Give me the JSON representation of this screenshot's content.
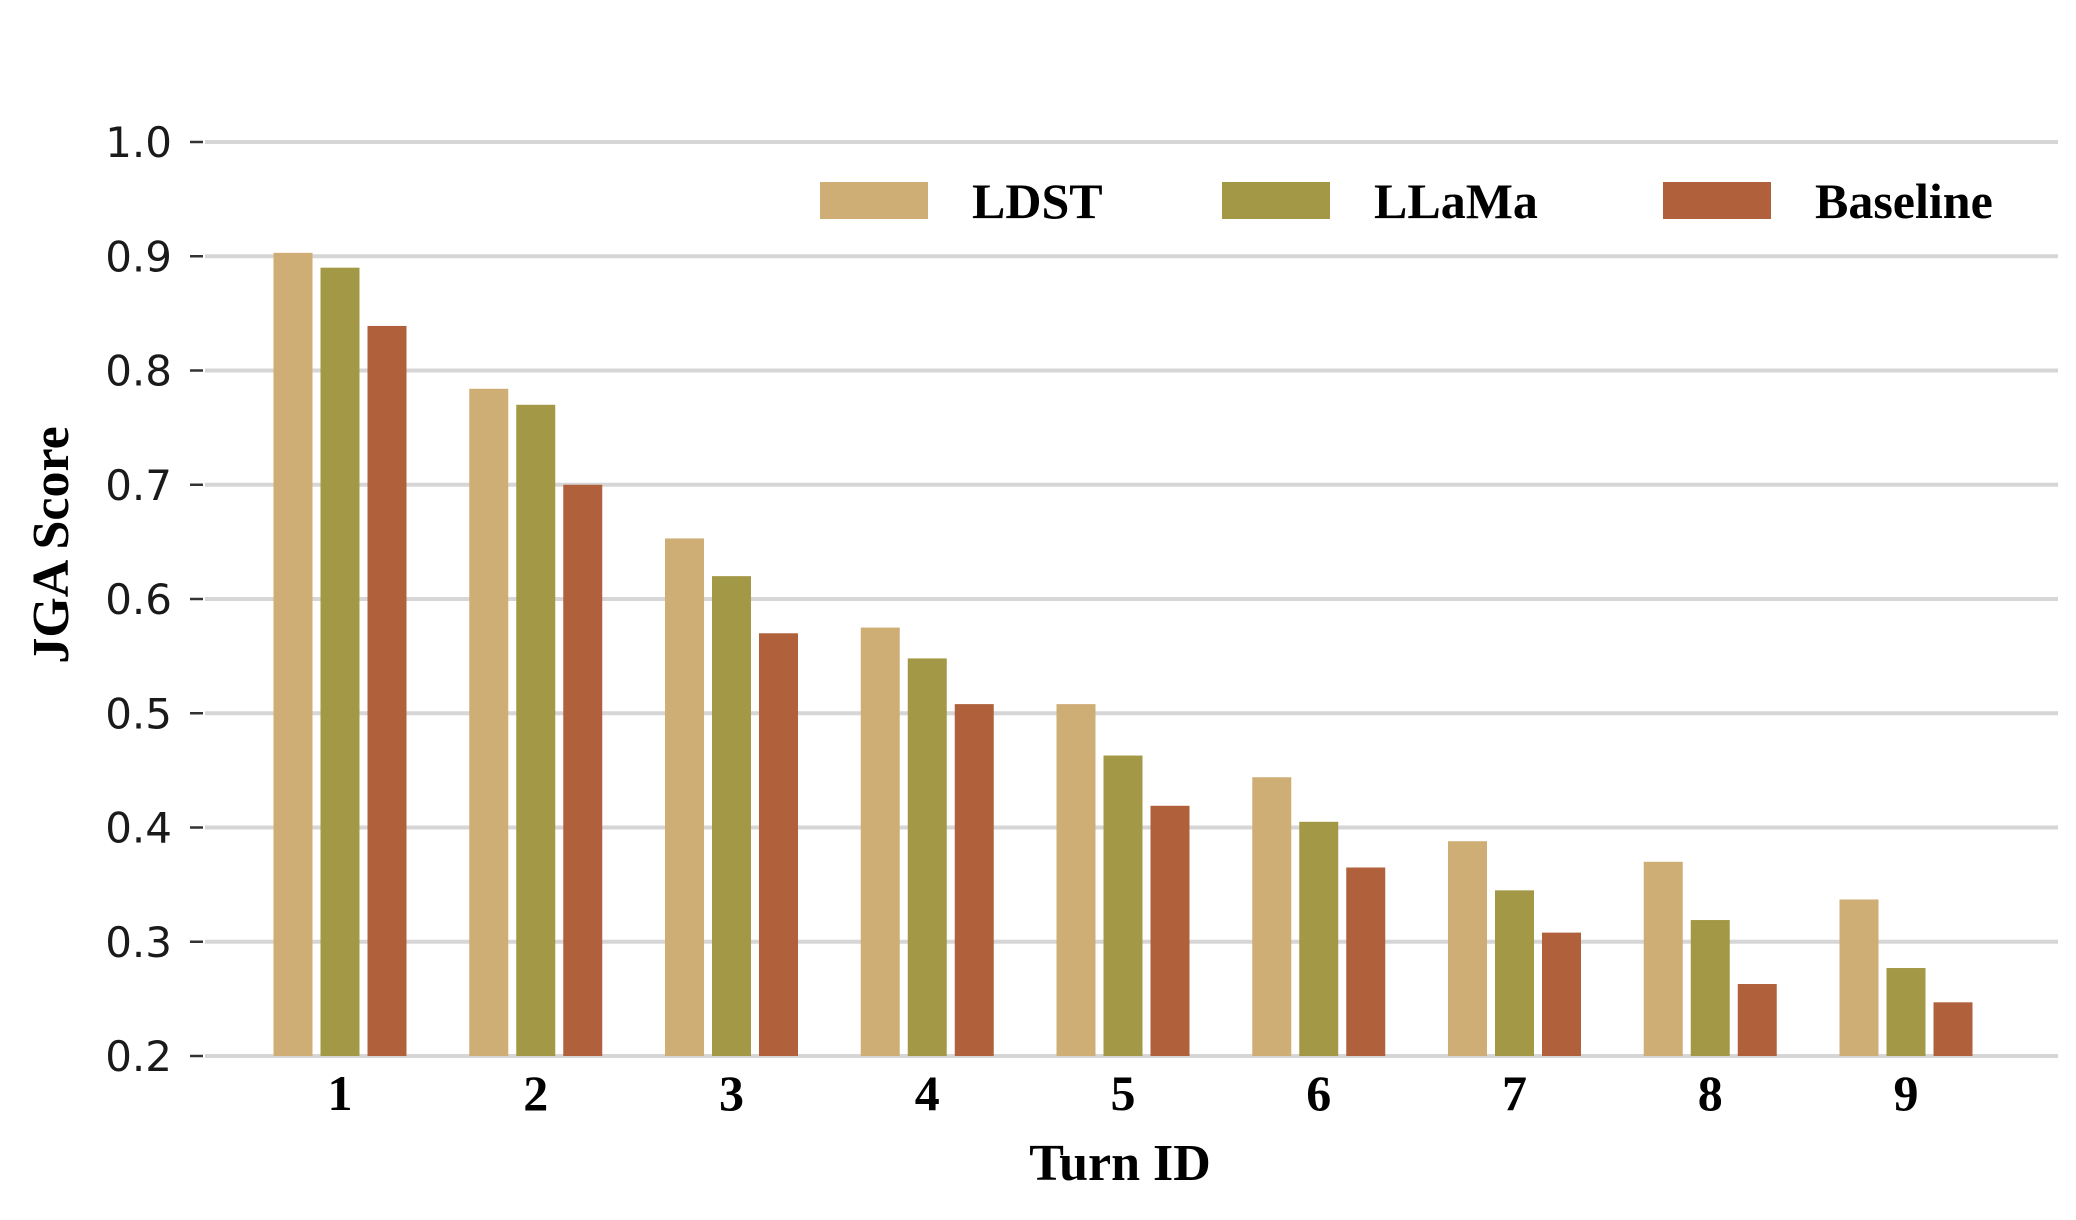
{
  "chart_data": {
    "type": "bar",
    "title": "",
    "xlabel": "Turn ID",
    "ylabel": "JGA Score",
    "categories": [
      "1",
      "2",
      "3",
      "4",
      "5",
      "6",
      "7",
      "8",
      "9"
    ],
    "ylim": [
      0.2,
      1.0
    ],
    "yticks": [
      "0.2",
      "0.3",
      "0.4",
      "0.5",
      "0.6",
      "0.7",
      "0.8",
      "0.9",
      "1.0"
    ],
    "grid": "horizontal",
    "legend_position": "top-right",
    "series": [
      {
        "name": "LDST",
        "color": "#CFAE76",
        "values": [
          0.903,
          0.784,
          0.653,
          0.575,
          0.508,
          0.444,
          0.388,
          0.37,
          0.337
        ]
      },
      {
        "name": "LLaMa",
        "color": "#A39845",
        "values": [
          0.89,
          0.77,
          0.62,
          0.548,
          0.463,
          0.405,
          0.345,
          0.319,
          0.277
        ]
      },
      {
        "name": "Baseline",
        "color": "#B0603A",
        "values": [
          0.839,
          0.7,
          0.57,
          0.508,
          0.419,
          0.365,
          0.308,
          0.263,
          0.247
        ]
      }
    ]
  }
}
